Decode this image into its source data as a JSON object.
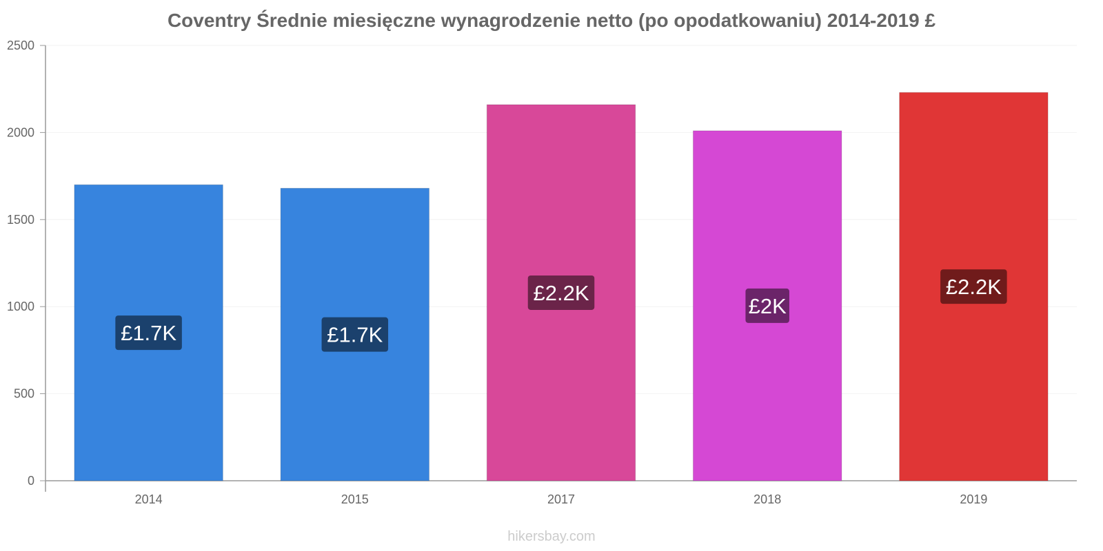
{
  "chart_data": {
    "type": "bar",
    "title": "Coventry Średnie miesięczne wynagrodzenie netto (po opodatkowaniu) 2014-2019 £",
    "xlabel": "",
    "ylabel": "",
    "categories": [
      "2014",
      "2015",
      "2017",
      "2018",
      "2019"
    ],
    "values": [
      1700,
      1680,
      2160,
      2010,
      2230
    ],
    "data_labels": [
      "£1.7K",
      "£1.7K",
      "£2.2K",
      "£2K",
      "£2.2K"
    ],
    "ylim": [
      0,
      2500
    ],
    "yticks": [
      0,
      500,
      1000,
      1500,
      2000,
      2500
    ],
    "grid": true,
    "legend": "none",
    "colors": {
      "bars": [
        "#3784de",
        "#3784de",
        "#d84899",
        "#d548d4",
        "#e03636"
      ],
      "labels": [
        "#1b416d",
        "#1b416d",
        "#6b2449",
        "#6b2469",
        "#701b1b"
      ],
      "axis": "#999999",
      "tick_text": "#666666",
      "grid": "#f2f2f2"
    }
  },
  "watermark": "hikersbay.com"
}
